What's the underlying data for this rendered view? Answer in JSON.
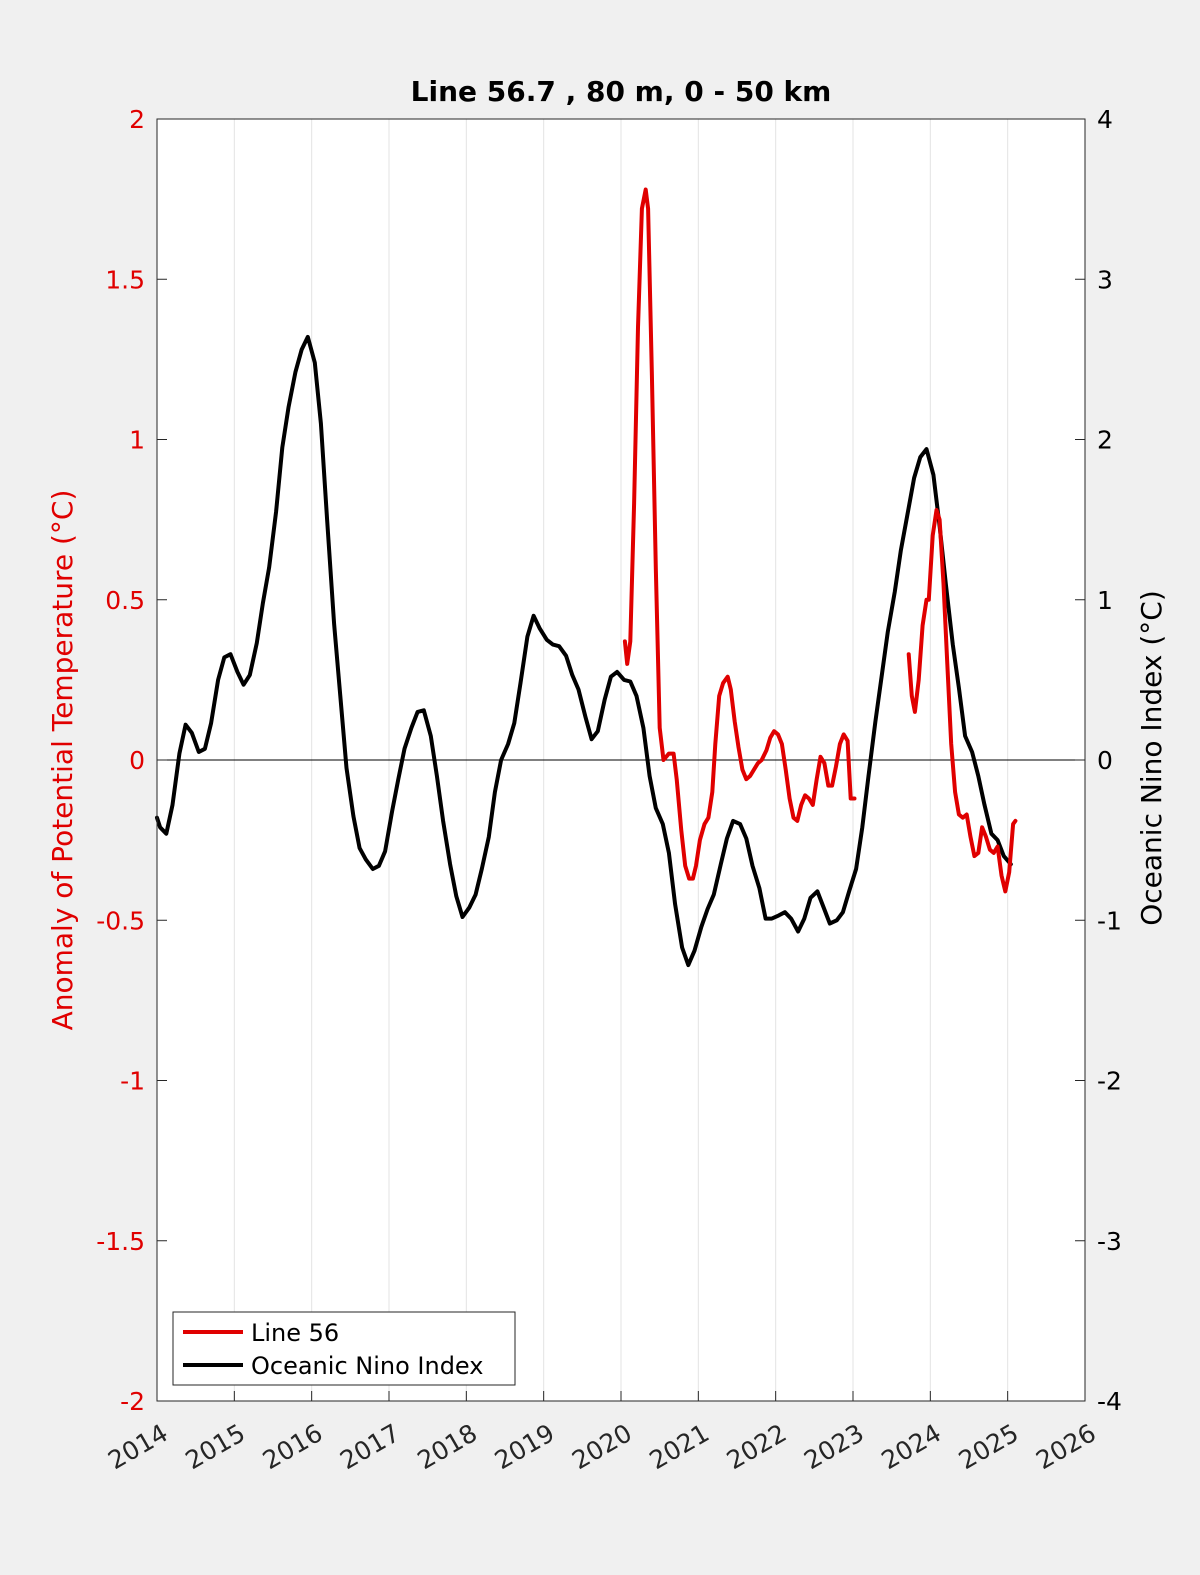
{
  "chart_data": {
    "type": "line",
    "title": "Line 56.7 , 80 m, 0 - 50 km",
    "ylabel": "Anomaly of Potential Temperature (°C)",
    "y2label": "Oceanic Nino Index (°C)",
    "xlim": [
      2014,
      2026
    ],
    "ylim": [
      -2,
      2
    ],
    "y2lim": [
      -4,
      4
    ],
    "x_ticks": [
      "2014",
      "2015",
      "2016",
      "2017",
      "2018",
      "2019",
      "2020",
      "2021",
      "2022",
      "2023",
      "2024",
      "2025",
      "2026"
    ],
    "y_ticks": [
      "-2",
      "-1.5",
      "-1",
      "-0.5",
      "0",
      "0.5",
      "1",
      "1.5",
      "2"
    ],
    "y2_ticks": [
      "-4",
      "-3",
      "-2",
      "-1",
      "0",
      "1",
      "2",
      "3",
      "4"
    ],
    "grid": "vertical",
    "legend_position": "bottom-left",
    "colors": {
      "line56": "#e00000",
      "oni": "#000000",
      "left_axis": "#e00000",
      "right_axis": "#000000"
    },
    "series": [
      {
        "name": "Line 56",
        "axis": "left",
        "color": "#e00000",
        "segments": [
          {
            "x": [
              2020.05,
              2020.08,
              2020.12,
              2020.17,
              2020.22,
              2020.27,
              2020.32,
              2020.35,
              2020.4,
              2020.45,
              2020.5,
              2020.55,
              2020.62,
              2020.68,
              2020.72,
              2020.78,
              2020.83,
              2020.88,
              2020.93,
              2020.97,
              2021.02,
              2021.08,
              2021.13,
              2021.18,
              2021.22,
              2021.27,
              2021.32,
              2021.38,
              2021.42,
              2021.47,
              2021.52,
              2021.57,
              2021.62,
              2021.67,
              2021.72,
              2021.77,
              2021.82,
              2021.88,
              2021.93,
              2021.98,
              2022.03,
              2022.08,
              2022.13,
              2022.18,
              2022.23,
              2022.28,
              2022.33,
              2022.38,
              2022.43,
              2022.48,
              2022.53,
              2022.58,
              2022.63,
              2022.68,
              2022.73,
              2022.78,
              2022.83,
              2022.88,
              2022.93,
              2022.97,
              2023.02
            ],
            "y": [
              0.37,
              0.3,
              0.37,
              0.8,
              1.35,
              1.72,
              1.78,
              1.72,
              1.2,
              0.6,
              0.1,
              0.0,
              0.02,
              0.02,
              -0.06,
              -0.22,
              -0.33,
              -0.37,
              -0.37,
              -0.33,
              -0.25,
              -0.2,
              -0.18,
              -0.1,
              0.05,
              0.2,
              0.24,
              0.26,
              0.22,
              0.12,
              0.04,
              -0.03,
              -0.06,
              -0.05,
              -0.03,
              -0.01,
              0.0,
              0.03,
              0.07,
              0.09,
              0.08,
              0.05,
              -0.03,
              -0.12,
              -0.18,
              -0.19,
              -0.14,
              -0.11,
              -0.12,
              -0.14,
              -0.06,
              0.01,
              -0.01,
              -0.08,
              -0.08,
              -0.02,
              0.05,
              0.08,
              0.06,
              -0.12,
              -0.12
            ]
          },
          {
            "x": [
              2023.72,
              2023.76,
              2023.8,
              2023.85,
              2023.9,
              2023.95,
              2023.98,
              2024.03,
              2024.08,
              2024.12,
              2024.17,
              2024.22,
              2024.27,
              2024.32,
              2024.37,
              2024.42,
              2024.47,
              2024.52,
              2024.57,
              2024.62,
              2024.67,
              2024.72,
              2024.77,
              2024.82,
              2024.87,
              2024.92,
              2024.97,
              2025.02,
              2025.07,
              2025.1
            ],
            "y": [
              0.33,
              0.2,
              0.15,
              0.25,
              0.42,
              0.5,
              0.5,
              0.7,
              0.78,
              0.75,
              0.55,
              0.3,
              0.05,
              -0.1,
              -0.17,
              -0.18,
              -0.17,
              -0.24,
              -0.3,
              -0.29,
              -0.21,
              -0.24,
              -0.28,
              -0.29,
              -0.27,
              -0.36,
              -0.41,
              -0.35,
              -0.2,
              -0.19
            ]
          }
        ]
      },
      {
        "name": "Oceanic Nino Index",
        "axis": "right",
        "color": "#000000",
        "segments": [
          {
            "x": [
              2014.0,
              2014.04,
              2014.12,
              2014.2,
              2014.29,
              2014.37,
              2014.45,
              2014.54,
              2014.62,
              2014.7,
              2014.79,
              2014.87,
              2014.95,
              2015.04,
              2015.12,
              2015.2,
              2015.29,
              2015.37,
              2015.45,
              2015.54,
              2015.62,
              2015.7,
              2015.79,
              2015.87,
              2015.95,
              2016.04,
              2016.12,
              2016.2,
              2016.29,
              2016.37,
              2016.45,
              2016.54,
              2016.62,
              2016.7,
              2016.79,
              2016.87,
              2016.95,
              2017.04,
              2017.12,
              2017.2,
              2017.29,
              2017.37,
              2017.45,
              2017.54,
              2017.62,
              2017.7,
              2017.79,
              2017.87,
              2017.95,
              2018.04,
              2018.12,
              2018.2,
              2018.29,
              2018.37,
              2018.45,
              2018.54,
              2018.62,
              2018.7,
              2018.79,
              2018.87,
              2018.95,
              2019.04,
              2019.12,
              2019.2,
              2019.29,
              2019.37,
              2019.45,
              2019.54,
              2019.62,
              2019.7,
              2019.79,
              2019.87,
              2019.95,
              2020.04,
              2020.12,
              2020.2,
              2020.29,
              2020.37,
              2020.45,
              2020.54,
              2020.62,
              2020.7,
              2020.79,
              2020.87,
              2020.95,
              2021.04,
              2021.12,
              2021.2,
              2021.29,
              2021.37,
              2021.45,
              2021.54,
              2021.62,
              2021.7,
              2021.79,
              2021.87,
              2021.95,
              2022.04,
              2022.12,
              2022.2,
              2022.29,
              2022.37,
              2022.45,
              2022.54,
              2022.62,
              2022.7,
              2022.79,
              2022.87,
              2022.95,
              2023.04,
              2023.12,
              2023.2,
              2023.29,
              2023.37,
              2023.45,
              2023.54,
              2023.62,
              2023.7,
              2023.79,
              2023.87,
              2023.95,
              2024.04,
              2024.12,
              2024.2,
              2024.29,
              2024.37,
              2024.45,
              2024.54,
              2024.62,
              2024.7,
              2024.79,
              2024.87,
              2024.95,
              2025.04
            ],
            "y": [
              -0.36,
              -0.42,
              -0.46,
              -0.28,
              0.04,
              0.22,
              0.17,
              0.05,
              0.07,
              0.23,
              0.5,
              0.64,
              0.66,
              0.55,
              0.47,
              0.53,
              0.73,
              0.98,
              1.2,
              1.55,
              1.95,
              2.2,
              2.42,
              2.56,
              2.64,
              2.48,
              2.1,
              1.5,
              0.85,
              0.4,
              -0.05,
              -0.35,
              -0.55,
              -0.62,
              -0.68,
              -0.66,
              -0.57,
              -0.32,
              -0.12,
              0.07,
              0.2,
              0.3,
              0.31,
              0.15,
              -0.1,
              -0.38,
              -0.65,
              -0.85,
              -0.98,
              -0.92,
              -0.84,
              -0.68,
              -0.48,
              -0.2,
              0.0,
              0.1,
              0.23,
              0.48,
              0.77,
              0.9,
              0.82,
              0.75,
              0.72,
              0.71,
              0.65,
              0.53,
              0.44,
              0.27,
              0.13,
              0.18,
              0.38,
              0.52,
              0.55,
              0.5,
              0.49,
              0.4,
              0.2,
              -0.1,
              -0.3,
              -0.4,
              -0.58,
              -0.9,
              -1.17,
              -1.28,
              -1.19,
              -1.04,
              -0.93,
              -0.84,
              -0.65,
              -0.49,
              -0.38,
              -0.4,
              -0.49,
              -0.66,
              -0.8,
              -0.99,
              -0.99,
              -0.97,
              -0.95,
              -0.99,
              -1.07,
              -0.99,
              -0.86,
              -0.82,
              -0.92,
              -1.02,
              -1.0,
              -0.95,
              -0.82,
              -0.68,
              -0.42,
              -0.1,
              0.24,
              0.52,
              0.8,
              1.05,
              1.31,
              1.52,
              1.76,
              1.89,
              1.94,
              1.78,
              1.46,
              1.1,
              0.72,
              0.45,
              0.15,
              0.05,
              -0.1,
              -0.28,
              -0.46,
              -0.5,
              -0.6,
              -0.65
            ]
          }
        ]
      }
    ]
  }
}
